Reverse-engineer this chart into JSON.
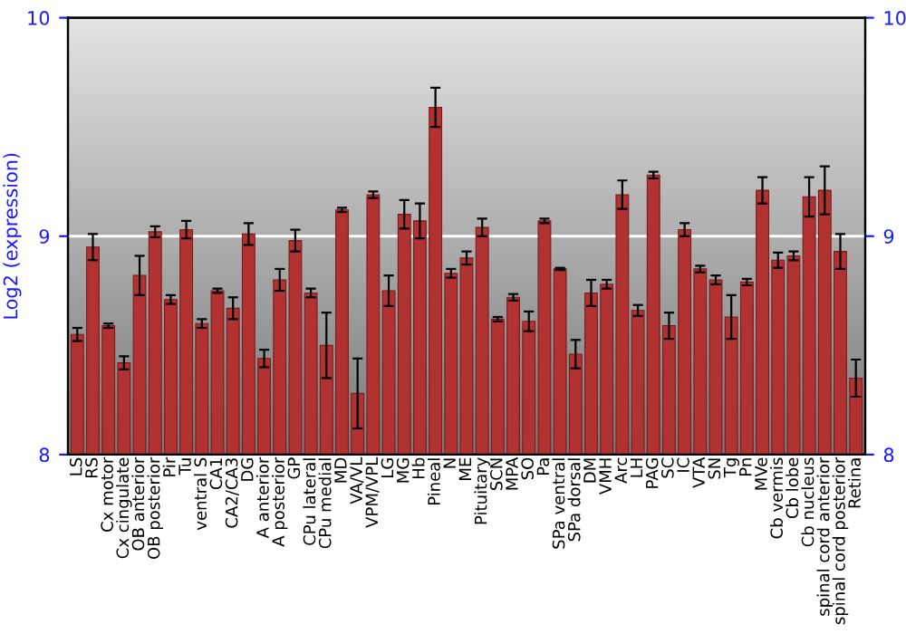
{
  "chart_data": {
    "type": "bar",
    "ylabel": "Log2 (expression)",
    "categories": [
      "LS",
      "RS",
      "Cx motor",
      "Cx cingulate",
      "OB anterior",
      "OB posterior",
      "Pir",
      "Tu",
      "ventral S",
      "CA1",
      "CA2/CA3",
      "DG",
      "A anterior",
      "A posterior",
      "GP",
      "CPu lateral",
      "CPu medial",
      "MD",
      "VA/VL",
      "VPM/VPL",
      "LG",
      "MG",
      "Hb",
      "Pineal",
      "N",
      "ME",
      "Pituitary",
      "SCN",
      "MPA",
      "SO",
      "Pa",
      "SPa ventral",
      "SPa dorsal",
      "DM",
      "VMH",
      "Arc",
      "LH",
      "PAG",
      "SC",
      "IC",
      "VTA",
      "SN",
      "Tg",
      "Pn",
      "MVe",
      "Cb vermis",
      "Cb lobe",
      "Cb nucleus",
      "spinal cord anterior",
      "spinal cord posterior",
      "Retina"
    ],
    "values": [
      8.55,
      8.95,
      8.59,
      8.42,
      8.82,
      9.02,
      8.71,
      9.03,
      8.6,
      8.75,
      8.67,
      9.01,
      8.44,
      8.8,
      8.98,
      8.74,
      8.5,
      9.12,
      8.28,
      9.19,
      8.75,
      9.1,
      9.07,
      9.59,
      8.83,
      8.9,
      9.04,
      8.62,
      8.72,
      8.61,
      9.07,
      8.85,
      8.46,
      8.74,
      8.78,
      9.19,
      8.66,
      9.28,
      8.59,
      9.03,
      8.85,
      8.8,
      8.63,
      8.79,
      9.21,
      8.89,
      8.91,
      9.18,
      9.21,
      8.93,
      8.35
    ],
    "errors": [
      0.03,
      0.06,
      0.01,
      0.03,
      0.09,
      0.025,
      0.02,
      0.04,
      0.02,
      0.01,
      0.05,
      0.05,
      0.04,
      0.05,
      0.05,
      0.02,
      0.15,
      0.01,
      0.16,
      0.015,
      0.07,
      0.065,
      0.08,
      0.09,
      0.02,
      0.03,
      0.04,
      0.01,
      0.015,
      0.045,
      0.01,
      0.005,
      0.065,
      0.06,
      0.02,
      0.065,
      0.025,
      0.015,
      0.06,
      0.03,
      0.015,
      0.02,
      0.1,
      0.015,
      0.06,
      0.035,
      0.02,
      0.09,
      0.11,
      0.08,
      0.085
    ],
    "color": "#b23232",
    "ylim": [
      8,
      10
    ],
    "yticks": [
      8,
      9,
      10
    ],
    "y2lim": [
      8,
      10
    ],
    "y2ticks": [
      8,
      9,
      10
    ],
    "ref_lines": [
      {
        "axis": "y",
        "value": 9,
        "color": "#ffffff"
      }
    ]
  }
}
